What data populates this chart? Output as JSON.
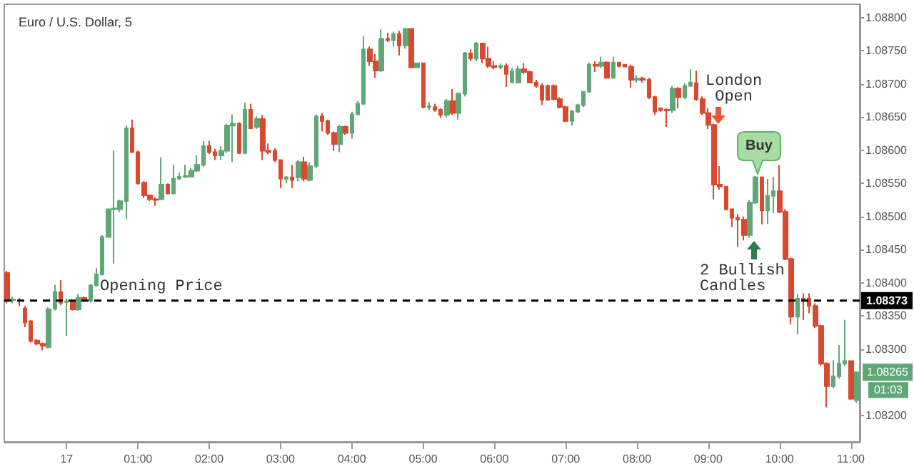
{
  "chart_data": {
    "type": "candlestick",
    "title": "Euro / U.S. Dollar, 5",
    "categories": [
      null,
      null,
      null,
      null,
      null,
      null,
      null,
      null,
      null,
      null,
      "17",
      null,
      null,
      null,
      null,
      null,
      null,
      null,
      null,
      null,
      null,
      null,
      "01:00",
      null,
      null,
      null,
      null,
      null,
      null,
      null,
      null,
      null,
      null,
      null,
      "02:00",
      null,
      null,
      null,
      null,
      null,
      null,
      null,
      null,
      null,
      null,
      null,
      "03:00",
      null,
      null,
      null,
      null,
      null,
      null,
      null,
      null,
      null,
      null,
      null,
      "04:00",
      null,
      null,
      null,
      null,
      null,
      null,
      null,
      null,
      null,
      null,
      null,
      "05:00",
      null,
      null,
      null,
      null,
      null,
      null,
      null,
      null,
      null,
      null,
      null,
      "06:00",
      null,
      null,
      null,
      null,
      null,
      null,
      null,
      null,
      null,
      null,
      null,
      "07:00",
      null,
      null,
      null,
      null,
      null,
      null,
      null,
      null,
      null,
      null,
      null,
      "08:00",
      null,
      null,
      null,
      null,
      null,
      null,
      null,
      null,
      null,
      null,
      null,
      "09:00",
      null,
      null,
      null,
      null,
      null,
      null,
      null,
      null,
      null,
      null,
      null,
      "10:00",
      null,
      null,
      null,
      null,
      null,
      null,
      null,
      null,
      null,
      null,
      null,
      "11:00",
      null
    ],
    "colors": [
      "#d84a30",
      "#5fa777",
      "#d84a30",
      "#d84a30",
      "#d84a30",
      "#d84a30",
      "#d84a30",
      "#5fa777",
      "#5fa777",
      "#d84a30",
      "#5fa777",
      "#d84a30",
      "#5fa777",
      "#d84a30",
      "#5fa777",
      "#5fa777",
      "#5fa777",
      "#5fa777",
      "#5fa777",
      "#5fa777",
      "#5fa777",
      "#d84a30",
      "#d84a30",
      "#d84a30",
      "#d84a30",
      "#d84a30",
      "#5fa777",
      "#d84a30",
      "#5fa777",
      "#5fa777",
      "#5fa777",
      "#5fa777",
      "#5fa777",
      "#5fa777",
      "#d84a30",
      "#d84a30",
      "#5fa777",
      "#5fa777",
      "#5fa777",
      "#d84a30",
      "#5fa777",
      "#d84a30",
      "#5fa777",
      "#d84a30",
      "#d84a30",
      "#d84a30",
      "#d84a30",
      "#5fa777",
      "#d84a30",
      "#5fa777",
      "#d84a30",
      "#5fa777",
      "#5fa777",
      "#d84a30",
      "#d84a30",
      "#d84a30",
      "#5fa777",
      "#d84a30",
      "#5fa777",
      "#5fa777",
      "#5fa777",
      "#d84a30",
      "#d84a30",
      "#5fa777",
      "#d84a30",
      "#5fa777",
      "#d84a30",
      "#5fa777",
      "#d84a30",
      "#5fa777",
      "#d84a30",
      "#5fa777",
      "#d84a30",
      "#d84a30",
      "#5fa777",
      "#d84a30",
      "#5fa777",
      "#5fa777",
      "#d84a30",
      "#5fa777",
      "#d84a30",
      "#d84a30",
      "#d84a30",
      "#5fa777",
      "#d84a30",
      "#5fa777",
      "#5fa777",
      "#d84a30",
      "#d84a30",
      "#d84a30",
      "#d84a30",
      "#d84a30",
      "#d84a30",
      "#d84a30",
      "#d84a30",
      "#5fa777",
      "#5fa777",
      "#5fa777",
      "#5fa777",
      "#d84a30",
      "#5fa777",
      "#d84a30",
      "#5fa777",
      "#d84a30",
      "#d84a30",
      "#d84a30",
      "#5fa777",
      "#d84a30",
      "#d84a30",
      "#d84a30",
      "#d84a30",
      "#d84a30",
      "#5fa777",
      "#d84a30",
      "#5fa777",
      "#5fa777",
      "#d84a30",
      "#d84a30",
      "#d84a30",
      "#d84a30",
      "#d84a30",
      "#d84a30",
      "#d84a30",
      "#d84a30",
      "#d84a30",
      "#5fa777",
      "#5fa777",
      "#d84a30",
      "#5fa777",
      "#5fa777",
      "#d84a30",
      "#d84a30",
      "#d84a30",
      "#5fa777",
      "#d84a30",
      "#d84a30",
      "#d84a30",
      "#d84a30",
      "#d84a30",
      "#5fa777",
      "#5fa777",
      "#5fa777",
      "#d84a30",
      "#5fa777"
    ],
    "ohlc": [
      [
        1.08415,
        1.08418,
        1.08369,
        1.08374
      ],
      [
        1.08374,
        1.08379,
        1.08369,
        1.08375
      ],
      [
        1.08374,
        1.08377,
        1.08365,
        1.08373
      ],
      [
        1.08361,
        1.08365,
        1.08333,
        1.0834
      ],
      [
        1.08342,
        1.08344,
        1.0831,
        1.08312
      ],
      [
        1.08313,
        1.08315,
        1.08306,
        1.08308
      ],
      [
        1.08308,
        1.0831,
        1.08298,
        1.08305
      ],
      [
        1.08303,
        1.08363,
        1.08301,
        1.0836
      ],
      [
        1.08361,
        1.08397,
        1.08358,
        1.08386
      ],
      [
        1.08386,
        1.08404,
        1.08366,
        1.0837
      ],
      [
        1.08371,
        1.08376,
        1.0832,
        1.08372
      ],
      [
        1.08371,
        1.08374,
        1.08358,
        1.0836
      ],
      [
        1.0836,
        1.08383,
        1.08358,
        1.08377
      ],
      [
        1.08377,
        1.08379,
        1.08371,
        1.08373
      ],
      [
        1.08373,
        1.08398,
        1.0837,
        1.08396
      ],
      [
        1.08396,
        1.08422,
        1.08395,
        1.08413
      ],
      [
        1.08413,
        1.08472,
        1.08411,
        1.08469
      ],
      [
        1.08469,
        1.08512,
        1.08468,
        1.08511
      ],
      [
        1.08511,
        1.08599,
        1.08429,
        1.08512
      ],
      [
        1.08511,
        1.08525,
        1.08507,
        1.08523
      ],
      [
        1.08523,
        1.08637,
        1.08496,
        1.08633
      ],
      [
        1.08633,
        1.08646,
        1.08596,
        1.08597
      ],
      [
        1.08597,
        1.08599,
        1.08548,
        1.0855
      ],
      [
        1.08551,
        1.08553,
        1.08528,
        1.08532
      ],
      [
        1.08532,
        1.08533,
        1.08523,
        1.08526
      ],
      [
        1.08526,
        1.08529,
        1.08516,
        1.08525
      ],
      [
        1.08526,
        1.08589,
        1.08525,
        1.08548
      ],
      [
        1.08548,
        1.0855,
        1.08533,
        1.08535
      ],
      [
        1.08535,
        1.08578,
        1.08533,
        1.08557
      ],
      [
        1.08557,
        1.08566,
        1.08555,
        1.0856
      ],
      [
        1.0856,
        1.08578,
        1.08558,
        1.08561
      ],
      [
        1.0856,
        1.08573,
        1.08559,
        1.08569
      ],
      [
        1.08569,
        1.08592,
        1.08567,
        1.08578
      ],
      [
        1.08578,
        1.08614,
        1.08575,
        1.08606
      ],
      [
        1.08606,
        1.08614,
        1.08594,
        1.08597
      ],
      [
        1.08597,
        1.08602,
        1.08585,
        1.08592
      ],
      [
        1.08592,
        1.08606,
        1.08585,
        1.08599
      ],
      [
        1.08599,
        1.0864,
        1.08596,
        1.08637
      ],
      [
        1.08637,
        1.08654,
        1.08582,
        1.0864
      ],
      [
        1.0864,
        1.08642,
        1.08594,
        1.08596
      ],
      [
        1.08596,
        1.08672,
        1.08594,
        1.08661
      ],
      [
        1.08661,
        1.0867,
        1.08632,
        1.08633
      ],
      [
        1.08635,
        1.08651,
        1.08632,
        1.08647
      ],
      [
        1.08647,
        1.08653,
        1.08585,
        1.08599
      ],
      [
        1.08599,
        1.0861,
        1.08594,
        1.08597
      ],
      [
        1.08599,
        1.08603,
        1.08582,
        1.08585
      ],
      [
        1.08585,
        1.08585,
        1.08543,
        1.08557
      ],
      [
        1.08557,
        1.08561,
        1.0855,
        1.08559
      ],
      [
        1.08559,
        1.08578,
        1.08543,
        1.08555
      ],
      [
        1.08559,
        1.08585,
        1.08553,
        1.08582
      ],
      [
        1.08582,
        1.0859,
        1.08553,
        1.08557
      ],
      [
        1.08555,
        1.08582,
        1.08553,
        1.08576
      ],
      [
        1.08576,
        1.08654,
        1.08573,
        1.08651
      ],
      [
        1.08651,
        1.08656,
        1.08628,
        1.08644
      ],
      [
        1.08644,
        1.08646,
        1.08623,
        1.08626
      ],
      [
        1.08626,
        1.08628,
        1.08599,
        1.08609
      ],
      [
        1.08609,
        1.08638,
        1.08597,
        1.08635
      ],
      [
        1.08635,
        1.08637,
        1.08623,
        1.08626
      ],
      [
        1.08626,
        1.08658,
        1.08617,
        1.08654
      ],
      [
        1.08654,
        1.08674,
        1.08653,
        1.0867
      ],
      [
        1.0867,
        1.08772,
        1.08668,
        1.08752
      ],
      [
        1.08752,
        1.08756,
        1.08727,
        1.08734
      ],
      [
        1.08734,
        1.08745,
        1.08709,
        1.0872
      ],
      [
        1.0872,
        1.08782,
        1.08718,
        1.08768
      ],
      [
        1.08768,
        1.08777,
        1.08763,
        1.08766
      ],
      [
        1.08766,
        1.08779,
        1.08756,
        1.08775
      ],
      [
        1.08775,
        1.0878,
        1.08743,
        1.08758
      ],
      [
        1.08758,
        1.08784,
        1.08753,
        1.08783
      ],
      [
        1.08783,
        1.08784,
        1.08724,
        1.08725
      ],
      [
        1.08725,
        1.08732,
        1.08724,
        1.08731
      ],
      [
        1.08731,
        1.08732,
        1.08663,
        1.08665
      ],
      [
        1.08665,
        1.08672,
        1.08661,
        1.08666
      ],
      [
        1.08665,
        1.0867,
        1.08658,
        1.08661
      ],
      [
        1.08661,
        1.08663,
        1.08649,
        1.08653
      ],
      [
        1.08653,
        1.08677,
        1.08649,
        1.08674
      ],
      [
        1.08674,
        1.08692,
        1.08653,
        1.08656
      ],
      [
        1.08656,
        1.08687,
        1.08646,
        1.08685
      ],
      [
        1.08685,
        1.08748,
        1.08681,
        1.08746
      ],
      [
        1.08746,
        1.08752,
        1.08734,
        1.08738
      ],
      [
        1.08738,
        1.08763,
        1.08734,
        1.08761
      ],
      [
        1.08761,
        1.08761,
        1.08731,
        1.08738
      ],
      [
        1.08738,
        1.08756,
        1.08724,
        1.08727
      ],
      [
        1.08727,
        1.08734,
        1.08722,
        1.08725
      ],
      [
        1.08725,
        1.08731,
        1.08722,
        1.08727
      ],
      [
        1.08727,
        1.08731,
        1.08695,
        1.08715
      ],
      [
        1.08702,
        1.08724,
        1.08701,
        1.08719
      ],
      [
        1.08702,
        1.08727,
        1.08701,
        1.08722
      ],
      [
        1.08722,
        1.08731,
        1.08715,
        1.08718
      ],
      [
        1.08718,
        1.0872,
        1.08701,
        1.08702
      ],
      [
        1.08702,
        1.08706,
        1.08694,
        1.08697
      ],
      [
        1.08697,
        1.08701,
        1.08668,
        1.08676
      ],
      [
        1.08697,
        1.08699,
        1.08674,
        1.08676
      ],
      [
        1.08697,
        1.08699,
        1.08675,
        1.08677
      ],
      [
        1.08677,
        1.0868,
        1.08663,
        1.08665
      ],
      [
        1.08665,
        1.08667,
        1.08642,
        1.08644
      ],
      [
        1.08644,
        1.08661,
        1.08637,
        1.08658
      ],
      [
        1.08658,
        1.0867,
        1.08656,
        1.08668
      ],
      [
        1.08668,
        1.08689,
        1.08665,
        1.08688
      ],
      [
        1.08688,
        1.08732,
        1.08687,
        1.08729
      ],
      [
        1.08729,
        1.08734,
        1.08718,
        1.08727
      ],
      [
        1.08727,
        1.08741,
        1.08724,
        1.08732
      ],
      [
        1.08732,
        1.08734,
        1.08708,
        1.08709
      ],
      [
        1.08709,
        1.08741,
        1.08708,
        1.08732
      ],
      [
        1.08732,
        1.08732,
        1.08725,
        1.08727
      ],
      [
        1.08729,
        1.0873,
        1.08725,
        1.08726
      ],
      [
        1.08726,
        1.08729,
        1.08694,
        1.08706
      ],
      [
        1.08706,
        1.08713,
        1.08702,
        1.08708
      ],
      [
        1.08708,
        1.08711,
        1.08702,
        1.08706
      ],
      [
        1.08706,
        1.08709,
        1.08677,
        1.0868
      ],
      [
        1.0868,
        1.08682,
        1.08653,
        1.08658
      ],
      [
        1.08663,
        1.08665,
        1.08658,
        1.0866
      ],
      [
        1.08661,
        1.08663,
        1.08635,
        1.0866
      ],
      [
        1.0866,
        1.08697,
        1.08656,
        1.08693
      ],
      [
        1.08693,
        1.08695,
        1.08663,
        1.0868
      ],
      [
        1.0868,
        1.08701,
        1.08677,
        1.08697
      ],
      [
        1.08697,
        1.08722,
        1.08695,
        1.08702
      ],
      [
        1.08701,
        1.0872,
        1.08674,
        1.08677
      ],
      [
        1.08677,
        1.08681,
        1.08653,
        1.08656
      ],
      [
        1.08656,
        1.08663,
        1.08632,
        1.08638
      ],
      [
        1.08638,
        1.0864,
        1.08526,
        1.08548
      ],
      [
        1.08548,
        1.08576,
        1.0854,
        1.08545
      ],
      [
        1.08545,
        1.08546,
        1.08509,
        1.08511
      ],
      [
        1.08511,
        1.08512,
        1.08484,
        1.08498
      ],
      [
        1.08498,
        1.08504,
        1.08454,
        1.08495
      ],
      [
        1.08495,
        1.085,
        1.08464,
        1.08472
      ],
      [
        1.08472,
        1.08525,
        1.08468,
        1.08521
      ],
      [
        1.08521,
        1.08561,
        1.08519,
        1.08559
      ],
      [
        1.08559,
        1.0856,
        1.08488,
        1.08509
      ],
      [
        1.08509,
        1.08557,
        1.08489,
        1.08531
      ],
      [
        1.08531,
        1.0856,
        1.08505,
        1.08538
      ],
      [
        1.08538,
        1.08578,
        1.08505,
        1.08507
      ],
      [
        1.08507,
        1.08511,
        1.08434,
        1.08436
      ],
      [
        1.08436,
        1.08438,
        1.08337,
        1.08349
      ],
      [
        1.08349,
        1.08383,
        1.08322,
        1.08376
      ],
      [
        1.08376,
        1.08384,
        1.08344,
        1.08374
      ],
      [
        1.08376,
        1.08384,
        1.08354,
        1.08365
      ],
      [
        1.08365,
        1.08369,
        1.08332,
        1.08335
      ],
      [
        1.08335,
        1.08337,
        1.08275,
        1.08278
      ],
      [
        1.08278,
        1.0828,
        1.08212,
        1.08244
      ],
      [
        1.08244,
        1.08283,
        1.08241,
        1.08259
      ],
      [
        1.08259,
        1.08306,
        1.08255,
        1.08278
      ],
      [
        1.08278,
        1.08344,
        1.08275,
        1.08282
      ],
      [
        1.08282,
        1.08283,
        1.08223,
        1.08225
      ],
      [
        1.08223,
        1.08266,
        1.08219,
        1.08265
      ]
    ],
    "ylim": [
      1.0816,
      1.0882
    ],
    "yticks": [
      {
        "value": 1.082,
        "label": "1.08200"
      },
      {
        "value": 1.083,
        "label": "1.08300"
      },
      {
        "value": 1.0835,
        "label": "1.08350"
      },
      {
        "value": 1.084,
        "label": "1.08400"
      },
      {
        "value": 1.0845,
        "label": "1.08450"
      },
      {
        "value": 1.085,
        "label": "1.08500"
      },
      {
        "value": 1.0855,
        "label": "1.08550"
      },
      {
        "value": 1.086,
        "label": "1.08600"
      },
      {
        "value": 1.0865,
        "label": "1.08650"
      },
      {
        "value": 1.087,
        "label": "1.08700"
      },
      {
        "value": 1.0875,
        "label": "1.08750"
      },
      {
        "value": 1.088,
        "label": "1.08800"
      }
    ],
    "ref_lines": [
      {
        "axis": "y",
        "value": 1.08373,
        "label": "1.08373",
        "color": "#000000",
        "line_style": "dashed"
      }
    ],
    "annotations": [
      "Opening Price",
      "London Open",
      "Buy",
      "2 Bullish Candles",
      "1.08265",
      "01:03"
    ],
    "grid": false
  }
}
